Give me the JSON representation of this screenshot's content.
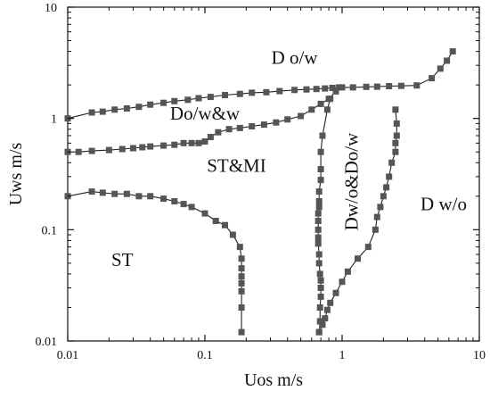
{
  "chart_data": {
    "type": "line",
    "xscale": "log",
    "yscale": "log",
    "xlim": [
      0.01,
      10
    ],
    "ylim": [
      0.01,
      10
    ],
    "grid": false,
    "xlabel": "Uos m/s",
    "ylabel": "Uws m/s",
    "x_ticks": [
      0.01,
      0.1,
      1,
      10
    ],
    "y_ticks": [
      0.01,
      0.1,
      1,
      10
    ],
    "x_tick_labels": [
      "0.01",
      "0.1",
      "1",
      "10"
    ],
    "y_tick_labels": [
      "0.01",
      "0.1",
      "1",
      "10"
    ],
    "series_color": "#222222",
    "marker_color": "#555555",
    "series": [
      {
        "x": [
          0.01,
          0.015,
          0.018,
          0.022,
          0.027,
          0.033,
          0.04,
          0.05,
          0.06,
          0.075,
          0.09,
          0.11,
          0.14,
          0.18,
          0.22,
          0.28,
          0.35,
          0.45,
          0.55,
          0.65,
          0.75,
          0.85,
          1.0,
          1.2,
          1.5,
          1.8,
          2.2,
          2.7,
          3.5,
          4.5,
          5.2,
          5.8,
          6.4
        ],
        "y": [
          1.0,
          1.13,
          1.15,
          1.2,
          1.23,
          1.27,
          1.33,
          1.38,
          1.43,
          1.47,
          1.52,
          1.56,
          1.62,
          1.66,
          1.7,
          1.72,
          1.76,
          1.8,
          1.82,
          1.84,
          1.86,
          1.88,
          1.9,
          1.9,
          1.92,
          1.93,
          1.95,
          1.96,
          1.98,
          2.3,
          2.8,
          3.3,
          4.0
        ]
      },
      {
        "x": [
          0.01,
          0.012,
          0.015,
          0.02,
          0.025,
          0.03,
          0.035,
          0.04,
          0.05,
          0.06,
          0.07,
          0.08,
          0.09,
          0.1,
          0.11,
          0.125,
          0.15,
          0.18,
          0.22,
          0.27,
          0.33,
          0.4,
          0.5,
          0.6,
          0.7,
          0.8,
          0.9,
          0.95
        ],
        "y": [
          0.5,
          0.5,
          0.51,
          0.52,
          0.53,
          0.54,
          0.55,
          0.56,
          0.57,
          0.58,
          0.6,
          0.6,
          0.6,
          0.62,
          0.68,
          0.75,
          0.8,
          0.82,
          0.85,
          0.88,
          0.92,
          0.98,
          1.05,
          1.2,
          1.35,
          1.5,
          1.75,
          1.9
        ]
      },
      {
        "x": [
          0.01,
          0.015,
          0.018,
          0.022,
          0.027,
          0.033,
          0.04,
          0.05,
          0.06,
          0.07,
          0.08,
          0.1,
          0.12,
          0.14,
          0.16,
          0.18,
          0.185,
          0.185,
          0.185,
          0.185,
          0.185,
          0.185,
          0.185
        ],
        "y": [
          0.2,
          0.22,
          0.215,
          0.21,
          0.21,
          0.2,
          0.2,
          0.19,
          0.18,
          0.17,
          0.16,
          0.14,
          0.12,
          0.11,
          0.09,
          0.07,
          0.055,
          0.045,
          0.038,
          0.033,
          0.028,
          0.02,
          0.012
        ]
      },
      {
        "x": [
          0.82,
          0.78,
          0.72,
          0.7,
          0.7,
          0.7,
          0.68,
          0.68,
          0.68,
          0.67,
          0.67,
          0.67,
          0.67,
          0.67,
          0.68,
          0.68,
          0.69,
          0.7,
          0.7,
          0.7,
          0.69,
          0.69,
          0.68
        ],
        "y": [
          1.5,
          1.2,
          0.7,
          0.5,
          0.35,
          0.28,
          0.22,
          0.18,
          0.16,
          0.14,
          0.12,
          0.1,
          0.085,
          0.075,
          0.06,
          0.05,
          0.04,
          0.035,
          0.03,
          0.025,
          0.02,
          0.015,
          0.012
        ]
      },
      {
        "x": [
          0.68,
          0.72,
          0.75,
          0.78,
          0.82,
          0.9,
          1.0,
          1.1,
          1.3,
          1.55,
          1.75,
          1.8,
          1.9,
          2.0,
          2.1,
          2.2,
          2.3,
          2.45,
          2.45,
          2.5,
          2.5,
          2.45
        ],
        "y": [
          0.012,
          0.014,
          0.016,
          0.019,
          0.022,
          0.027,
          0.034,
          0.042,
          0.055,
          0.07,
          0.1,
          0.13,
          0.16,
          0.2,
          0.24,
          0.3,
          0.4,
          0.5,
          0.6,
          0.7,
          0.9,
          1.2
        ]
      }
    ],
    "annotations": [
      {
        "text": "D o/w",
        "x": 0.45,
        "y": 3.1,
        "rotate": 0
      },
      {
        "text": "Do/w&w",
        "x": 0.1,
        "y": 0.98,
        "rotate": 0
      },
      {
        "text": "ST&MI",
        "x": 0.17,
        "y": 0.33,
        "rotate": 0
      },
      {
        "text": "ST",
        "x": 0.025,
        "y": 0.047,
        "rotate": 0
      },
      {
        "text": "Dw/o&Do/w",
        "x": 1.3,
        "y": 0.27,
        "rotate": -90
      },
      {
        "text": "D w/o",
        "x": 5.5,
        "y": 0.15,
        "rotate": 0
      }
    ]
  }
}
